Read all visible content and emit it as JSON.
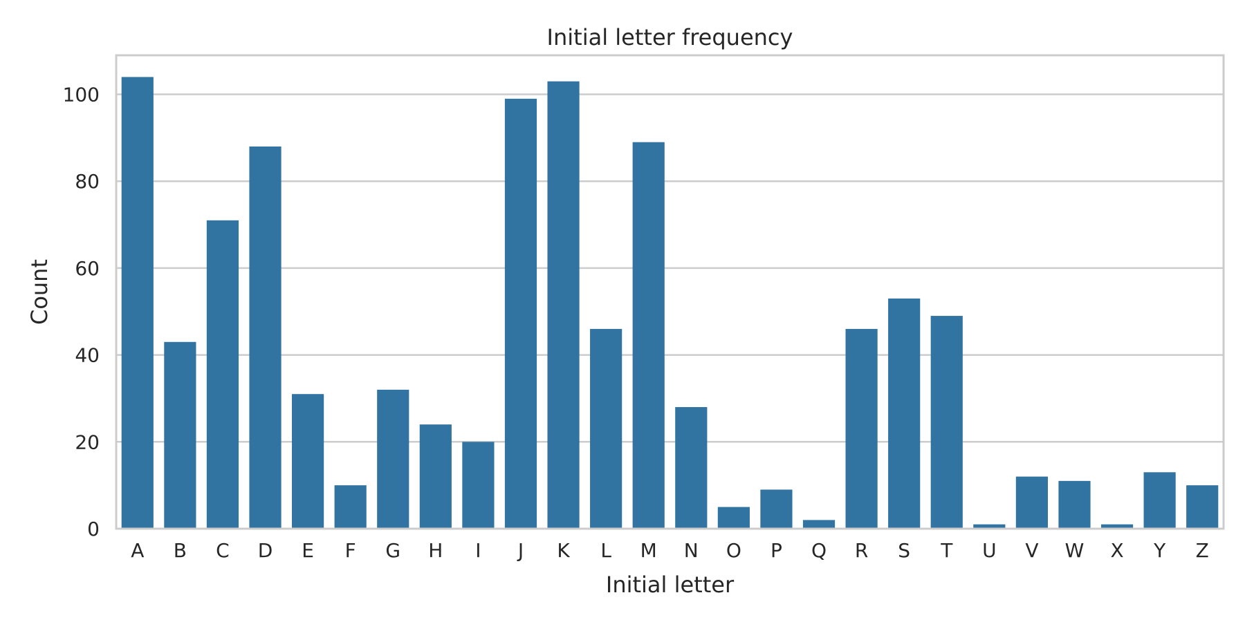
{
  "chart_data": {
    "type": "bar",
    "title": "Initial letter frequency",
    "xlabel": "Initial letter",
    "ylabel": "Count",
    "categories": [
      "A",
      "B",
      "C",
      "D",
      "E",
      "F",
      "G",
      "H",
      "I",
      "J",
      "K",
      "L",
      "M",
      "N",
      "O",
      "P",
      "Q",
      "R",
      "S",
      "T",
      "U",
      "V",
      "W",
      "X",
      "Y",
      "Z"
    ],
    "values": [
      104,
      43,
      71,
      88,
      31,
      10,
      32,
      24,
      20,
      99,
      103,
      46,
      89,
      28,
      5,
      9,
      2,
      46,
      53,
      49,
      1,
      12,
      11,
      1,
      13,
      10
    ],
    "ylim": [
      0,
      109
    ],
    "yticks": [
      0,
      20,
      40,
      60,
      80,
      100
    ],
    "grid": "horizontal",
    "bar_color": "#3274a1",
    "grid_color": "#cccccc",
    "text_color": "#262626"
  }
}
